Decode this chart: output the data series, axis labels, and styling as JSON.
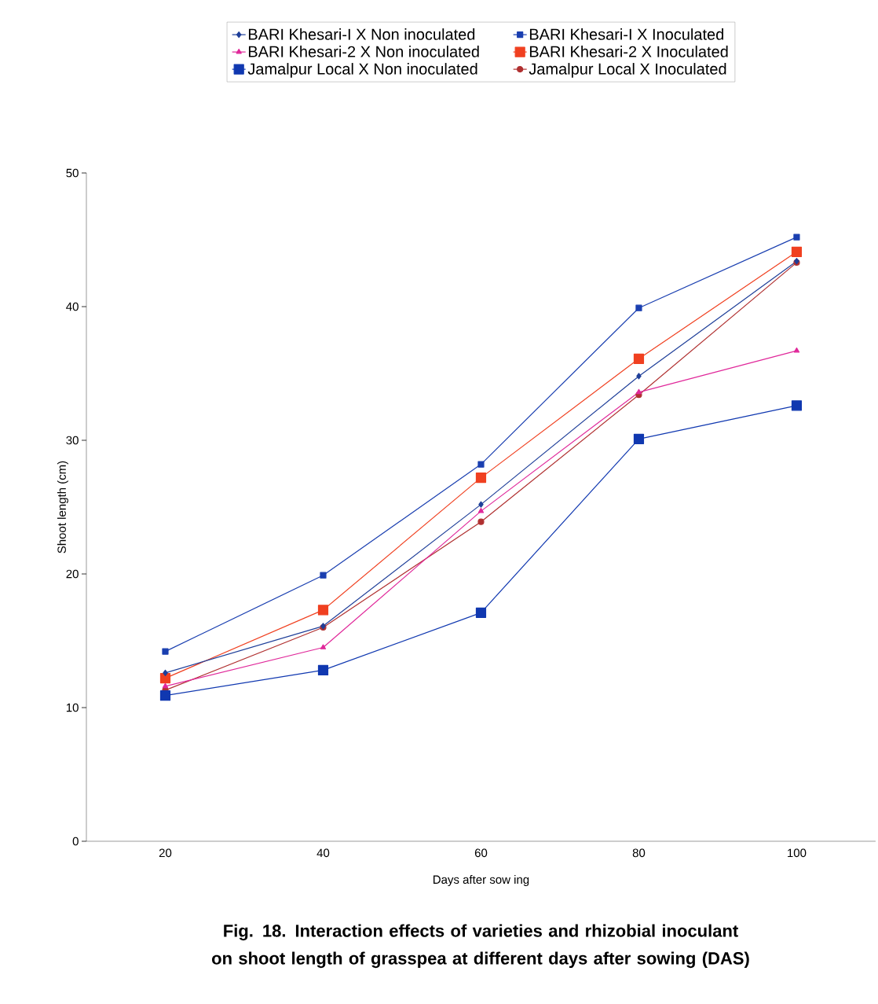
{
  "chart_data": {
    "type": "line",
    "categories": [
      "20",
      "40",
      "60",
      "80",
      "100"
    ],
    "xlabel": "Days after sow ing",
    "ylabel": "Shoot length (cm)",
    "ylim": [
      0,
      50
    ],
    "yticks": [
      0,
      10,
      20,
      30,
      40,
      50
    ],
    "legend": "top",
    "grid": false,
    "series": [
      {
        "name": "BARI Khesari-I X Non inoculated",
        "color": "#1f3f99",
        "marker": "diamond",
        "values": [
          12.6,
          16.1,
          25.2,
          34.8,
          43.4
        ]
      },
      {
        "name": "BARI Khesari-I X Inoculated",
        "color": "#1a3fb0",
        "marker": "square",
        "values": [
          14.2,
          19.9,
          28.2,
          39.9,
          45.2
        ]
      },
      {
        "name": "BARI Khesari-2 X Non inoculated",
        "color": "#e0289a",
        "marker": "triangle",
        "values": [
          11.6,
          14.5,
          24.7,
          33.6,
          36.7
        ]
      },
      {
        "name": "BARI Khesari-2 X Inoculated",
        "color": "#f04020",
        "marker": "square",
        "values": [
          12.2,
          17.3,
          27.2,
          36.1,
          44.1
        ]
      },
      {
        "name": "Jamalpur Local X Non inoculated",
        "color": "#1038b0",
        "marker": "square",
        "values": [
          10.9,
          12.8,
          17.1,
          30.1,
          32.6
        ]
      },
      {
        "name": "Jamalpur Local X Inoculated",
        "color": "#b03030",
        "marker": "circle",
        "values": [
          11.3,
          16.0,
          23.9,
          33.4,
          43.3
        ]
      }
    ],
    "annotations": [
      "Fig. 18. Interaction effects of varieties and rhizobial inoculant on shoot length of grasspea at different days after sowing (DAS)"
    ]
  }
}
